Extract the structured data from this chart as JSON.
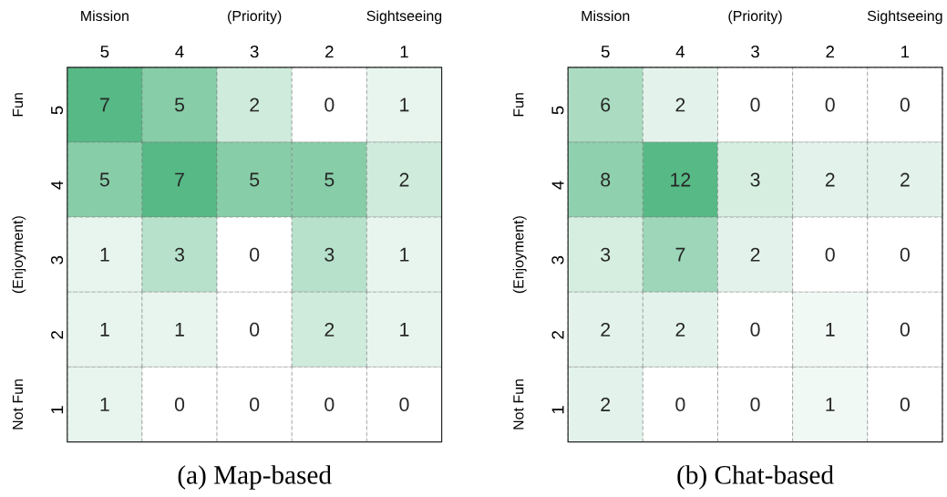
{
  "chart_data": [
    {
      "type": "heatmap",
      "title": "(a) Map-based",
      "xlabel": "(Priority)",
      "ylabel": "(Enjoyment)",
      "annotations": [
        "Mission",
        "Sightseeing",
        "Fun",
        "Not Fun"
      ],
      "color": "#57b985",
      "data_labels": true,
      "categories": [
        "5",
        "4",
        "3",
        "2",
        "1"
      ],
      "y_categories": [
        "5",
        "4",
        "3",
        "2",
        "1"
      ],
      "cells": [
        [
          7,
          5,
          2,
          0,
          1
        ],
        [
          5,
          7,
          5,
          5,
          2
        ],
        [
          1,
          3,
          0,
          3,
          1
        ],
        [
          1,
          1,
          0,
          2,
          1
        ],
        [
          1,
          0,
          0,
          0,
          0
        ]
      ]
    },
    {
      "type": "heatmap",
      "title": "(b) Chat-based",
      "xlabel": "(Priority)",
      "ylabel": "(Enjoyment)",
      "annotations": [
        "Mission",
        "Sightseeing",
        "Fun",
        "Not Fun"
      ],
      "color": "#57b985",
      "data_labels": true,
      "categories": [
        "5",
        "4",
        "3",
        "2",
        "1"
      ],
      "y_categories": [
        "5",
        "4",
        "3",
        "2",
        "1"
      ],
      "cells": [
        [
          6,
          2,
          0,
          0,
          0
        ],
        [
          8,
          12,
          3,
          2,
          2
        ],
        [
          3,
          7,
          2,
          0,
          0
        ],
        [
          2,
          2,
          0,
          1,
          0
        ],
        [
          2,
          0,
          0,
          1,
          0
        ]
      ]
    }
  ]
}
